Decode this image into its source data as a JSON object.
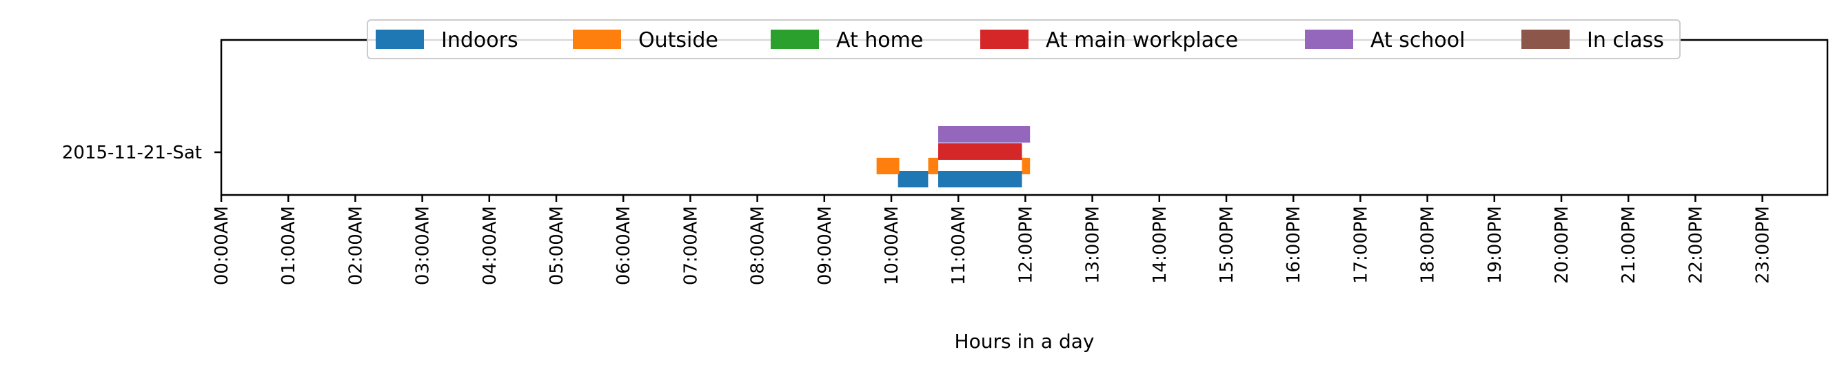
{
  "chart_data": {
    "type": "gantt",
    "title": "",
    "xlabel": "Hours in a day",
    "ylabel": "",
    "xlim": [
      0,
      24
    ],
    "x_ticks": [
      "00:00AM",
      "01:00AM",
      "02:00AM",
      "03:00AM",
      "04:00AM",
      "05:00AM",
      "06:00AM",
      "07:00AM",
      "08:00AM",
      "09:00AM",
      "10:00AM",
      "11:00AM",
      "12:00PM",
      "13:00PM",
      "14:00PM",
      "15:00PM",
      "16:00PM",
      "17:00PM",
      "18:00PM",
      "19:00PM",
      "20:00PM",
      "21:00PM",
      "22:00PM",
      "23:00PM"
    ],
    "categories": [
      "2015-11-21-Sat"
    ],
    "grid": false,
    "legend_position": "top-center",
    "series": [
      {
        "name": "Indoors",
        "color": "#1f77b4",
        "intervals": [
          [
            10.1,
            10.55
          ],
          [
            10.7,
            11.95
          ]
        ]
      },
      {
        "name": "Outside",
        "color": "#ff7f0e",
        "intervals": [
          [
            9.78,
            10.12
          ],
          [
            10.55,
            10.7
          ],
          [
            11.95,
            12.07
          ]
        ]
      },
      {
        "name": "At home",
        "color": "#2ca02c",
        "intervals": []
      },
      {
        "name": "At main workplace",
        "color": "#d62728",
        "intervals": [
          [
            10.7,
            11.95
          ]
        ]
      },
      {
        "name": "At school",
        "color": "#9467bd",
        "intervals": [
          [
            10.7,
            12.07
          ]
        ]
      },
      {
        "name": "In class",
        "color": "#8c564b",
        "intervals": []
      }
    ]
  }
}
